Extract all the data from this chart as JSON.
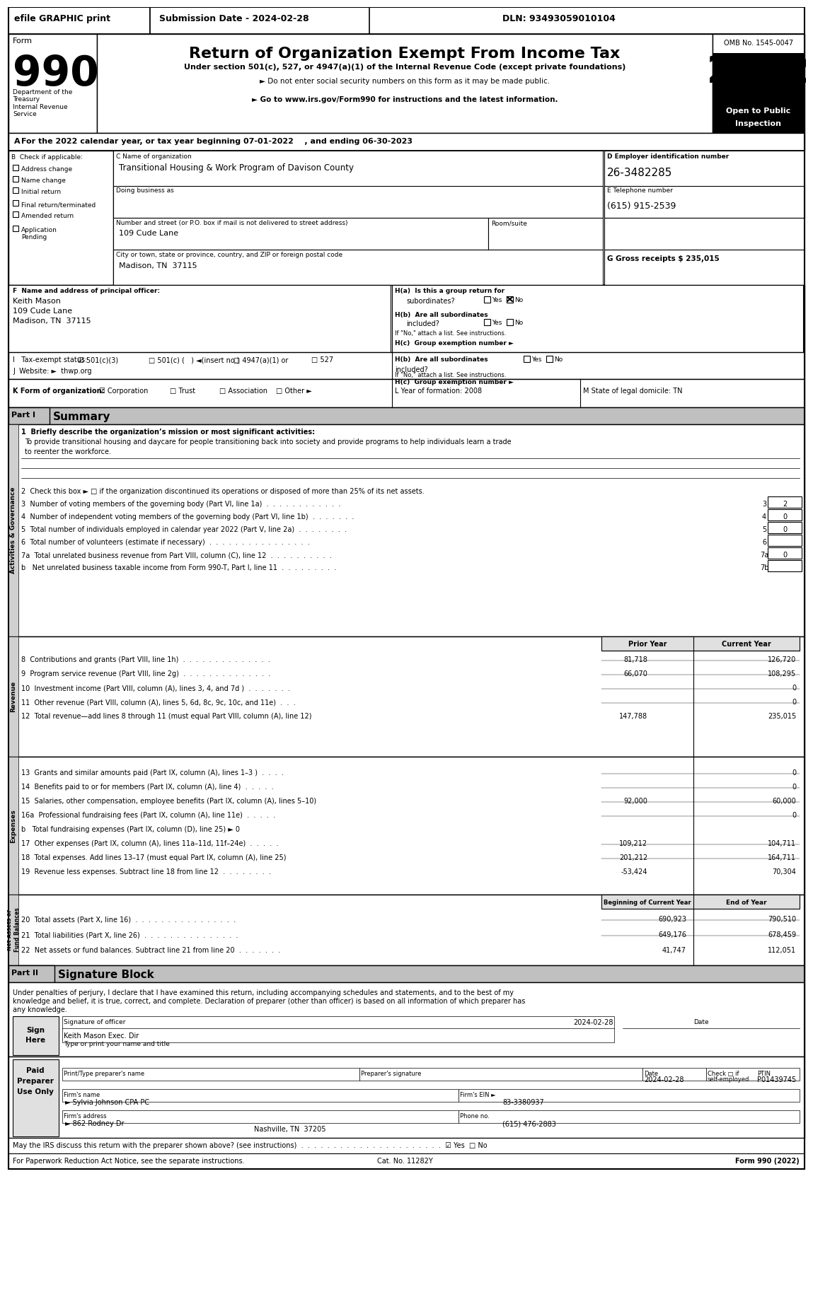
{
  "title": "Return of Organization Exempt From Income Tax",
  "form_number": "990",
  "year": "2022",
  "omb": "OMB No. 1545-0047",
  "open_to_public": "Open to Public\nInspection",
  "efile_text": "efile GRAPHIC print",
  "submission_date": "Submission Date - 2024-02-28",
  "dln": "DLN: 93493059010104",
  "subtitle1": "Under section 501(c), 527, or 4947(a)(1) of the Internal Revenue Code (except private foundations)",
  "subtitle2": "► Do not enter social security numbers on this form as it may be made public.",
  "subtitle3": "► Go to www.irs.gov/Form990 for instructions and the latest information.",
  "dept": "Department of the\nTreasury\nInternal Revenue\nService",
  "tax_year_line": "For the 2022 calendar year, or tax year beginning 07-01-2022    , and ending 06-30-2023",
  "check_if": "B  Check if applicable:",
  "check_items": [
    "Address change",
    "Name change",
    "Initial return",
    "Final return/terminated",
    "Amended return",
    "Application\nPending"
  ],
  "org_name_label": "C Name of organization",
  "org_name": "Transitional Housing & Work Program of Davison County",
  "dba_label": "Doing business as",
  "address_label": "Number and street (or P.O. box if mail is not delivered to street address)",
  "address": "109 Cude Lane",
  "room_label": "Room/suite",
  "city_label": "City or town, state or province, country, and ZIP or foreign postal code",
  "city": "Madison, TN  37115",
  "ein_label": "D Employer identification number",
  "ein": "26-3482285",
  "phone_label": "E Telephone number",
  "phone": "(615) 915-2539",
  "gross_receipts": "G Gross receipts $ 235,015",
  "principal_officer_label": "F  Name and address of principal officer:",
  "principal_officer": "Keith Mason\n109 Cude Lane\nMadison, TN  37115",
  "ha_label": "H(a)  Is this a group return for",
  "ha_text": "subordinates?",
  "ha_answer": "Yes ☑No",
  "hb_label": "H(b)  Are all subordinates\nincluded?",
  "hb_answer": "Yes □No",
  "hc_label": "H(c)  Group exemption number ►",
  "hc_note": "If \"No,\" attach a list. See instructions.",
  "tax_exempt_label": "I   Tax-exempt status:",
  "tax_exempt_items": [
    "☑ 501(c)(3)",
    "□ 501(c) (   ) ◄(insert no.)",
    "□ 4947(a)(1) or",
    "□ 527"
  ],
  "website_label": "J  Website: ►  thwp.org",
  "form_org_label": "K Form of organization:",
  "form_org_items": [
    "☑ Corporation",
    "□ Trust",
    "□ Association",
    "□ Other ►"
  ],
  "year_formed_label": "L Year of formation: 2008",
  "state_label": "M State of legal domicile: TN",
  "part1_label": "Part I",
  "part1_title": "Summary",
  "mission_label": "1  Briefly describe the organization’s mission or most significant activities:",
  "mission_text": "To provide transitional housing and daycare for people transitioning back into society and provide programs to help individuals learn a trade\nto reenter the workforce.",
  "activities_label": "Activities & Governance",
  "q2_text": "2  Check this box ► □ if the organization discontinued its operations or disposed of more than 25% of its net assets.",
  "q3_text": "3  Number of voting members of the governing body (Part VI, line 1a)  .  .  .  .  .  .  .  .  .  .  .  .",
  "q3_val": "3",
  "q3_answer": "2",
  "q4_text": "4  Number of independent voting members of the governing body (Part VI, line 1b)  .  .  .  .  .  .  .",
  "q4_val": "4",
  "q4_answer": "0",
  "q5_text": "5  Total number of individuals employed in calendar year 2022 (Part V, line 2a)  .  .  .  .  .  .  .  .",
  "q5_val": "5",
  "q5_answer": "0",
  "q6_text": "6  Total number of volunteers (estimate if necessary)  .  .  .  .  .  .  .  .  .  .  .  .  .  .  .  .",
  "q6_val": "6",
  "q7a_text": "7a  Total unrelated business revenue from Part VIII, column (C), line 12  .  .  .  .  .  .  .  .  .  .",
  "q7a_val": "7a",
  "q7a_answer": "0",
  "q7b_text": "b   Net unrelated business taxable income from Form 990-T, Part I, line 11  .  .  .  .  .  .  .  .  .",
  "q7b_val": "7b",
  "revenue_label": "Revenue",
  "prior_year_label": "Prior Year",
  "current_year_label": "Current Year",
  "q8_text": "8  Contributions and grants (Part VIII, line 1h)  .  .  .  .  .  .  .  .  .  .  .  .  .  .",
  "q8_prior": "81,718",
  "q8_current": "126,720",
  "q9_text": "9  Program service revenue (Part VIII, line 2g)  .  .  .  .  .  .  .  .  .  .  .  .  .  .",
  "q9_prior": "66,070",
  "q9_current": "108,295",
  "q10_text": "10  Investment income (Part VIII, column (A), lines 3, 4, and 7d )  .  .  .  .  .  .  .",
  "q10_prior": "",
  "q10_current": "0",
  "q11_text": "11  Other revenue (Part VIII, column (A), lines 5, 6d, 8c, 9c, 10c, and 11e)  .  .  .",
  "q11_prior": "",
  "q11_current": "0",
  "q12_text": "12  Total revenue—add lines 8 through 11 (must equal Part VIII, column (A), line 12)",
  "q12_prior": "147,788",
  "q12_current": "235,015",
  "expenses_label": "Expenses",
  "q13_text": "13  Grants and similar amounts paid (Part IX, column (A), lines 1–3 )  .  .  .  .",
  "q13_prior": "",
  "q13_current": "0",
  "q14_text": "14  Benefits paid to or for members (Part IX, column (A), line 4)  .  .  .  .  .",
  "q14_prior": "",
  "q14_current": "0",
  "q15_text": "15  Salaries, other compensation, employee benefits (Part IX, column (A), lines 5–10)",
  "q15_prior": "92,000",
  "q15_current": "60,000",
  "q16a_text": "16a  Professional fundraising fees (Part IX, column (A), line 11e)  .  .  .  .  .",
  "q16a_prior": "",
  "q16a_current": "0",
  "q16b_text": "b   Total fundraising expenses (Part IX, column (D), line 25) ► 0",
  "q17_text": "17  Other expenses (Part IX, column (A), lines 11a–11d, 11f–24e)  .  .  .  .  .",
  "q17_prior": "109,212",
  "q17_current": "104,711",
  "q18_text": "18  Total expenses. Add lines 13–17 (must equal Part IX, column (A), line 25)",
  "q18_prior": "201,212",
  "q18_current": "164,711",
  "q19_text": "19  Revenue less expenses. Subtract line 18 from line 12  .  .  .  .  .  .  .  .",
  "q19_prior": "-53,424",
  "q19_current": "70,304",
  "net_assets_label": "Net Assets or\nFund Balances",
  "bcy_label": "Beginning of Current Year",
  "eoy_label": "End of Year",
  "q20_text": "20  Total assets (Part X, line 16)  .  .  .  .  .  .  .  .  .  .  .  .  .  .  .  .",
  "q20_bcy": "690,923",
  "q20_eoy": "790,510",
  "q21_text": "21  Total liabilities (Part X, line 26)  .  .  .  .  .  .  .  .  .  .  .  .  .  .  .",
  "q21_bcy": "649,176",
  "q21_eoy": "678,459",
  "q22_text": "22  Net assets or fund balances. Subtract line 21 from line 20  .  .  .  .  .  .  .",
  "q22_bcy": "41,747",
  "q22_eoy": "112,051",
  "part2_label": "Part II",
  "part2_title": "Signature Block",
  "sig_notice": "Under penalties of perjury, I declare that I have examined this return, including accompanying schedules and statements, and to the best of my\nknowledge and belief, it is true, correct, and complete. Declaration of preparer (other than officer) is based on all information of which preparer has\nany knowledge.",
  "sign_here": "Sign\nHere",
  "sig_label": "Signature of officer",
  "sig_date": "2024-02-28",
  "sig_date_label": "Date",
  "sig_name": "Keith Mason Exec. Dir",
  "sig_title_label": "Type or print your name and title",
  "paid_preparer": "Paid\nPreparer\nUse Only",
  "preparer_name_label": "Print/Type preparer's name",
  "preparer_sig_label": "Preparer's signature",
  "preparer_date": "2024-02-28",
  "preparer_check_label": "Check □ if\nself-employed",
  "ptin_label": "PTIN",
  "ptin": "P01439745",
  "firm_name_label": "Firm's name",
  "firm_name": "► Sylvia Johnson CPA PC",
  "firm_ein_label": "Firm's EIN ►",
  "firm_ein": "83-3380937",
  "firm_address_label": "Firm's address",
  "firm_address": "► 862 Rodney Dr",
  "firm_city": "Nashville, TN  37205",
  "firm_phone_label": "Phone no.",
  "firm_phone": "(615) 476-2883",
  "irs_discuss": "May the IRS discuss this return with the preparer shown above? (see instructions)  .  .  .  .  .  .  .  .  .  .  .  .  .  .  .  .  .  .  .  .  .  .  ☑ Yes  □ No",
  "footer": "For Paperwork Reduction Act Notice, see the separate instructions.",
  "cat_no": "Cat. No. 11282Y",
  "form_footer": "Form 990 (2022)",
  "bg_color": "#ffffff",
  "border_color": "#000000",
  "header_bg": "#000000",
  "header_fg": "#ffffff",
  "section_bg": "#d3d3d3",
  "light_gray": "#e8e8e8"
}
